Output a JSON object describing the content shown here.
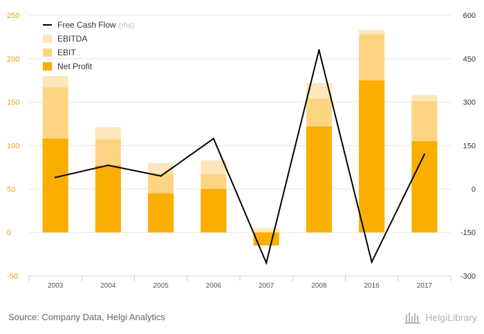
{
  "chart_data": {
    "type": "bar",
    "categories": [
      "2003",
      "2004",
      "2005",
      "2006",
      "2007",
      "2008",
      "2016",
      "2017"
    ],
    "series": [
      {
        "name": "EBITDA",
        "type": "bar",
        "axis": "left",
        "values": [
          180,
          121,
          80,
          83,
          5,
          172,
          233,
          158
        ]
      },
      {
        "name": "EBIT",
        "type": "bar",
        "axis": "left",
        "values": [
          167,
          107,
          68,
          67,
          -13,
          154,
          228,
          151
        ]
      },
      {
        "name": "Net Profit",
        "type": "bar",
        "axis": "left",
        "values": [
          108,
          77,
          45,
          50,
          -15,
          122,
          175,
          105
        ]
      },
      {
        "name": "Free Cash Flow",
        "type": "line",
        "axis": "right",
        "values": [
          40,
          82,
          45,
          174,
          -255,
          480,
          -252,
          120
        ]
      }
    ],
    "legend": [
      {
        "label": "Free Cash Flow",
        "suffix": "(rhs)"
      },
      {
        "label": "EBITDA",
        "suffix": ""
      },
      {
        "label": "EBIT",
        "suffix": ""
      },
      {
        "label": "Net Profit",
        "suffix": ""
      }
    ],
    "legend_position": "top-left",
    "left_axis": {
      "ticks": [
        "250",
        "200",
        "150",
        "100",
        "50",
        "0",
        "-50"
      ],
      "range": [
        -50,
        250
      ]
    },
    "right_axis": {
      "ticks": [
        "600",
        "450",
        "300",
        "150",
        "0",
        "-150",
        "-300"
      ],
      "range": [
        -300,
        600
      ]
    },
    "grid": true
  },
  "colors": {
    "ebitda": "#fde6bb",
    "ebit": "#fdd582",
    "net_profit": "#f9ae00",
    "line": "#000000",
    "left_ticks": "#e8a200",
    "grid": "#e4e4e4"
  },
  "footer": {
    "source": "Source: Company Data, Helgi Analytics",
    "brand": "HelgiLibrary"
  }
}
